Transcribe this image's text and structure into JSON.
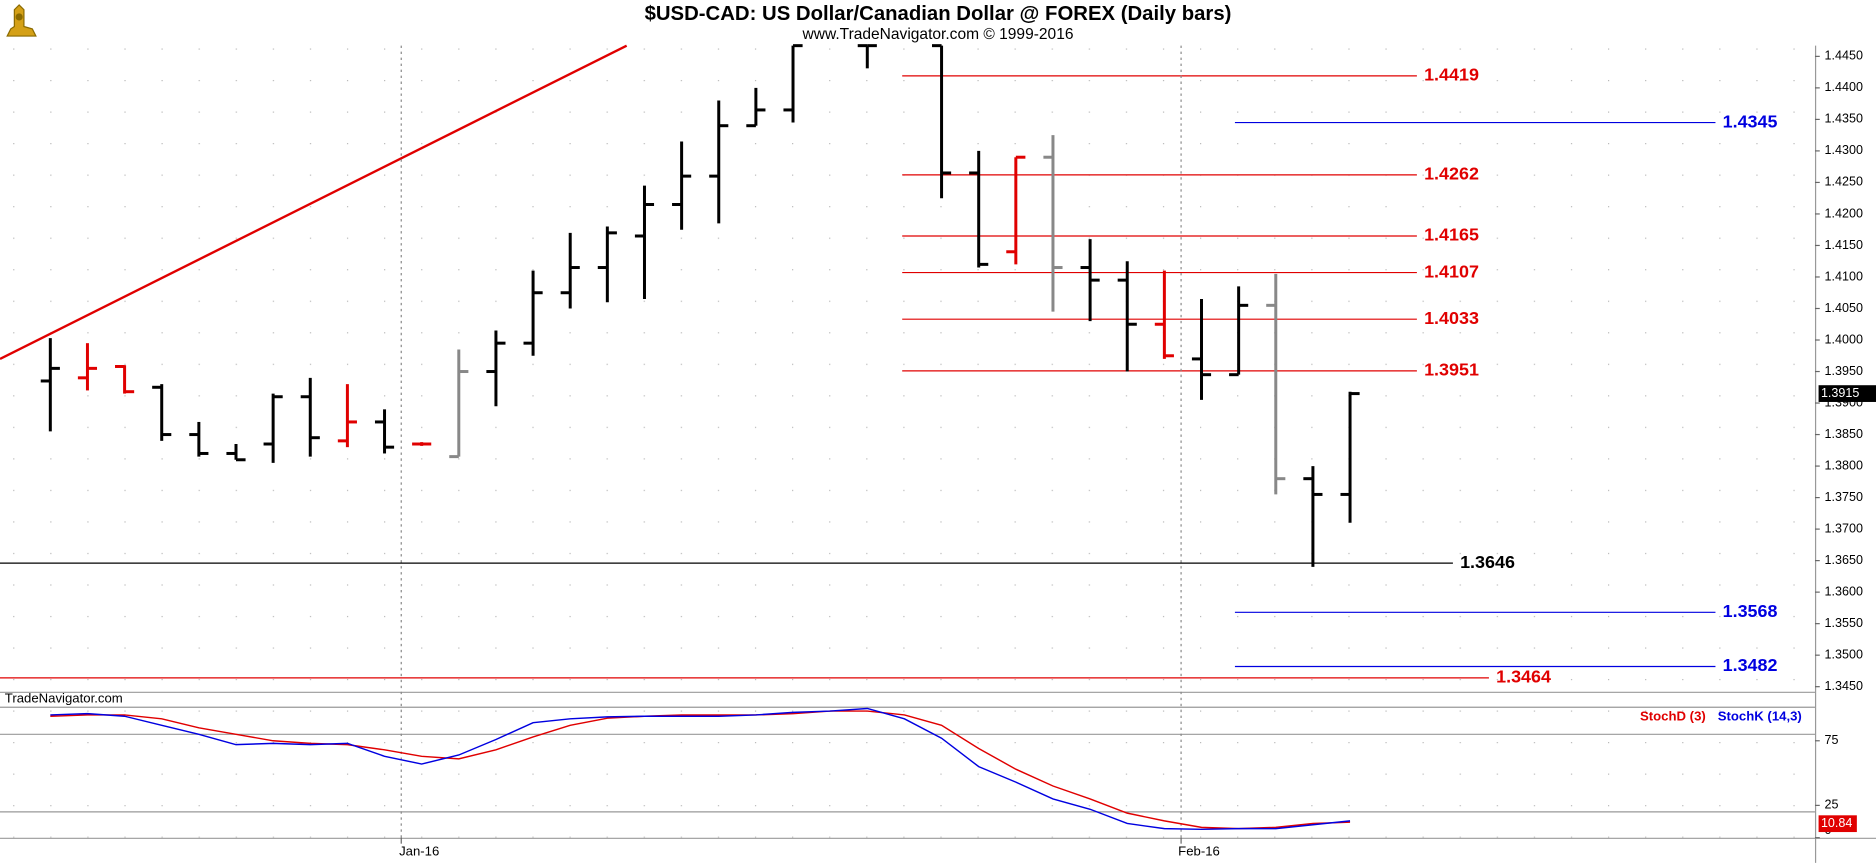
{
  "chart_data": [
    {
      "type": "ohlc",
      "title": "$USD-CAD:  US Dollar/Canadian Dollar @ FOREX  (Daily bars)",
      "subtitle": "www.TradeNavigator.com © 1999-2016",
      "watermark": "TradeNavigator.com",
      "xlim": [
        -1.355,
        47.52
      ],
      "x": [
        0,
        1,
        2,
        3,
        4,
        5,
        6,
        7,
        8,
        9,
        10,
        11,
        12,
        13,
        14,
        15,
        16,
        17,
        18,
        19,
        20,
        22,
        24,
        25,
        26,
        27,
        28,
        29,
        30,
        31,
        32,
        33,
        34,
        35
      ],
      "open": [
        1.3935,
        1.394,
        1.3958,
        1.3925,
        1.385,
        1.382,
        1.3835,
        1.391,
        1.384,
        1.387,
        1.3835,
        1.3815,
        1.395,
        1.3995,
        1.4075,
        1.4115,
        1.4165,
        1.4215,
        1.426,
        1.434,
        1.4365,
        1.4467,
        1.4467,
        1.4265,
        1.414,
        1.429,
        1.4115,
        1.4095,
        1.4025,
        1.397,
        1.3945,
        1.4055,
        1.378,
        1.3755
      ],
      "high": [
        1.4003,
        1.3995,
        1.396,
        1.393,
        1.387,
        1.3835,
        1.3915,
        1.394,
        1.393,
        1.389,
        1.3838,
        1.3985,
        1.4015,
        1.411,
        1.417,
        1.418,
        1.4245,
        1.4315,
        1.438,
        1.44,
        1.4467,
        1.4467,
        1.4467,
        1.43,
        1.429,
        1.4325,
        1.416,
        1.4125,
        1.411,
        1.4065,
        1.4085,
        1.4105,
        1.38,
        1.3918
      ],
      "low": [
        1.3855,
        1.392,
        1.3915,
        1.384,
        1.3815,
        1.381,
        1.3805,
        1.3815,
        1.383,
        1.382,
        1.3832,
        1.3815,
        1.3895,
        1.3975,
        1.405,
        1.406,
        1.4065,
        1.4175,
        1.4185,
        1.434,
        1.4345,
        1.4431,
        1.4225,
        1.4115,
        1.412,
        1.4045,
        1.403,
        1.395,
        1.397,
        1.3905,
        1.3945,
        1.3755,
        1.364,
        1.371
      ],
      "close": [
        1.3955,
        1.3955,
        1.3918,
        1.385,
        1.382,
        1.381,
        1.391,
        1.3845,
        1.387,
        1.383,
        1.3835,
        1.395,
        1.3995,
        1.4075,
        1.4115,
        1.417,
        1.4215,
        1.426,
        1.434,
        1.4365,
        1.4467,
        1.4467,
        1.4265,
        1.412,
        1.429,
        1.4115,
        1.4095,
        1.4025,
        1.3975,
        1.3945,
        1.4055,
        1.378,
        1.3755,
        1.3915
      ],
      "colors": [
        "#000000",
        "#e00000",
        "#e00000",
        "#000000",
        "#000000",
        "#000000",
        "#000000",
        "#000000",
        "#e00000",
        "#000000",
        "#e00000",
        "#888888",
        "#000000",
        "#000000",
        "#000000",
        "#000000",
        "#000000",
        "#000000",
        "#000000",
        "#000000",
        "#000000",
        "#000000",
        "#000000",
        "#000000",
        "#e00000",
        "#888888",
        "#000000",
        "#000000",
        "#e00000",
        "#000000",
        "#000000",
        "#888888",
        "#000000",
        "#000000"
      ],
      "ylim": [
        1.3442,
        1.4467
      ],
      "yticks": [
        {
          "value": 1.345,
          "label": "1.3450"
        },
        {
          "value": 1.35,
          "label": "1.3500"
        },
        {
          "value": 1.355,
          "label": "1.3550"
        },
        {
          "value": 1.36,
          "label": "1.3600"
        },
        {
          "value": 1.365,
          "label": "1.3650"
        },
        {
          "value": 1.37,
          "label": "1.3700"
        },
        {
          "value": 1.375,
          "label": "1.3750"
        },
        {
          "value": 1.38,
          "label": "1.3800"
        },
        {
          "value": 1.385,
          "label": "1.3850"
        },
        {
          "value": 1.39,
          "label": "1.3900"
        },
        {
          "value": 1.395,
          "label": "1.3950"
        },
        {
          "value": 1.4,
          "label": "1.4000"
        },
        {
          "value": 1.405,
          "label": "1.4050"
        },
        {
          "value": 1.41,
          "label": "1.4100"
        },
        {
          "value": 1.415,
          "label": "1.4150"
        },
        {
          "value": 1.42,
          "label": "1.4200"
        },
        {
          "value": 1.425,
          "label": "1.4250"
        },
        {
          "value": 1.43,
          "label": "1.4300"
        },
        {
          "value": 1.435,
          "label": "1.4350"
        },
        {
          "value": 1.44,
          "label": "1.4400"
        },
        {
          "value": 1.445,
          "label": "1.4450"
        }
      ],
      "levels": [
        {
          "value": 1.4419,
          "color": "#e00000",
          "from": 22.94,
          "to": 36.8
        },
        {
          "value": 1.4262,
          "color": "#e00000",
          "from": 22.94,
          "to": 36.8
        },
        {
          "value": 1.4165,
          "color": "#e00000",
          "from": 22.94,
          "to": 36.8
        },
        {
          "value": 1.4107,
          "color": "#e00000",
          "from": 22.94,
          "to": 36.8
        },
        {
          "value": 1.4033,
          "color": "#e00000",
          "from": 22.94,
          "to": 36.8
        },
        {
          "value": 1.3951,
          "color": "#e00000",
          "from": 22.94,
          "to": 36.8
        },
        {
          "value": 1.3646,
          "color": "#000000",
          "from": -1.355,
          "to": 37.77
        },
        {
          "value": 1.3464,
          "color": "#e00000",
          "from": -1.355,
          "to": 38.74
        },
        {
          "value": 1.4345,
          "color": "#0000e0",
          "from": 31.9,
          "to": 44.84
        },
        {
          "value": 1.3568,
          "color": "#0000e0",
          "from": 31.9,
          "to": 44.84
        },
        {
          "value": 1.3482,
          "color": "#0000e0",
          "from": 31.9,
          "to": 44.84
        }
      ],
      "trendline": {
        "color": "#e00000",
        "x": [
          -1.355,
          15.52
        ],
        "y": [
          1.397,
          1.4467
        ]
      },
      "last": {
        "value": 1.3915
      }
    },
    {
      "type": "line",
      "xlim": [
        -1.355,
        47.52
      ],
      "x": [
        0,
        1,
        2,
        3,
        4,
        5,
        6,
        7,
        8,
        9,
        10,
        11,
        12,
        13,
        14,
        15,
        16,
        17,
        18,
        19,
        20,
        21,
        22,
        23,
        24,
        25,
        26,
        27,
        28,
        29,
        30,
        31,
        32,
        33,
        34,
        35
      ],
      "series": [
        {
          "name": "StochD (3)",
          "color": "#e00000",
          "values": [
            94,
            95,
            95,
            92,
            85,
            80,
            75,
            73,
            72,
            68,
            63,
            61,
            68,
            78,
            87,
            92.5,
            94,
            95,
            95,
            95,
            96,
            98,
            98,
            95,
            87,
            69,
            53,
            40,
            30,
            19,
            13,
            8,
            7,
            8,
            11,
            12
          ]
        },
        {
          "name": "StochK (14,3)",
          "color": "#0000e0",
          "values": [
            95,
            96,
            94,
            87,
            80,
            72,
            73,
            72,
            73,
            63,
            57,
            64,
            76,
            89,
            92,
            93.5,
            94,
            94,
            94,
            95,
            97,
            98,
            100,
            92,
            77,
            55,
            43,
            30,
            22,
            11,
            7,
            6.5,
            7,
            7,
            10,
            13
          ]
        }
      ],
      "ylim": [
        0,
        100
      ],
      "yticks": [
        0,
        25,
        75
      ],
      "ref_lines": [
        80,
        20
      ],
      "last": {
        "value": 10.84
      },
      "xticks": [
        {
          "value": 9.45,
          "label": "Jan-16"
        },
        {
          "value": 30.45,
          "label": "Feb-16"
        }
      ]
    }
  ]
}
